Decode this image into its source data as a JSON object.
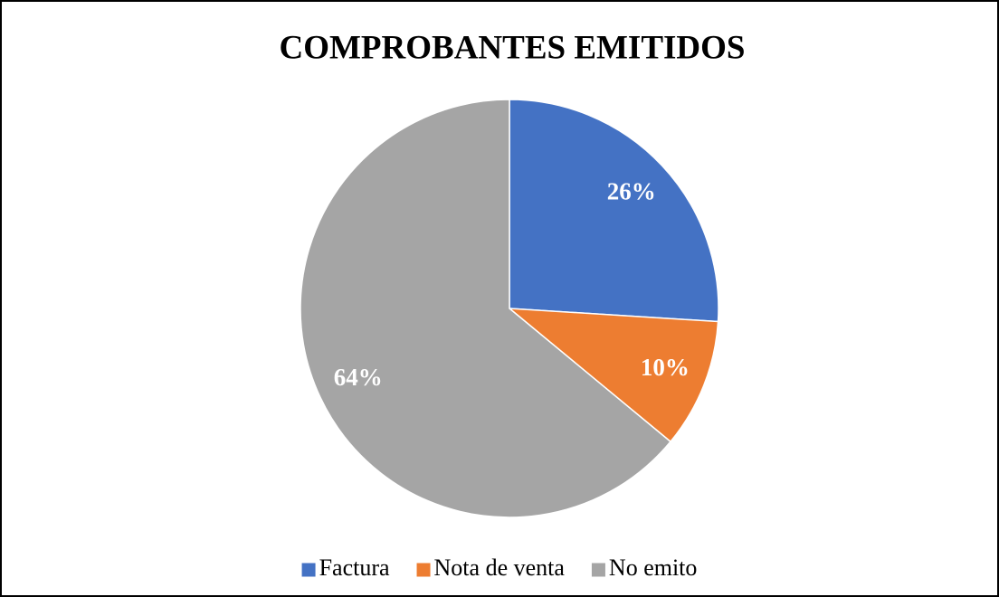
{
  "chart_data": {
    "type": "pie",
    "title": "COMPROBANTES EMITIDOS",
    "categories": [
      "Factura",
      "Nota de venta",
      "No emito"
    ],
    "values": [
      26,
      10,
      64
    ],
    "value_labels": [
      "26%",
      "10%",
      "64%"
    ],
    "colors": [
      "#4472c4",
      "#ed7d31",
      "#a5a5a5"
    ],
    "legend": "bottom"
  }
}
